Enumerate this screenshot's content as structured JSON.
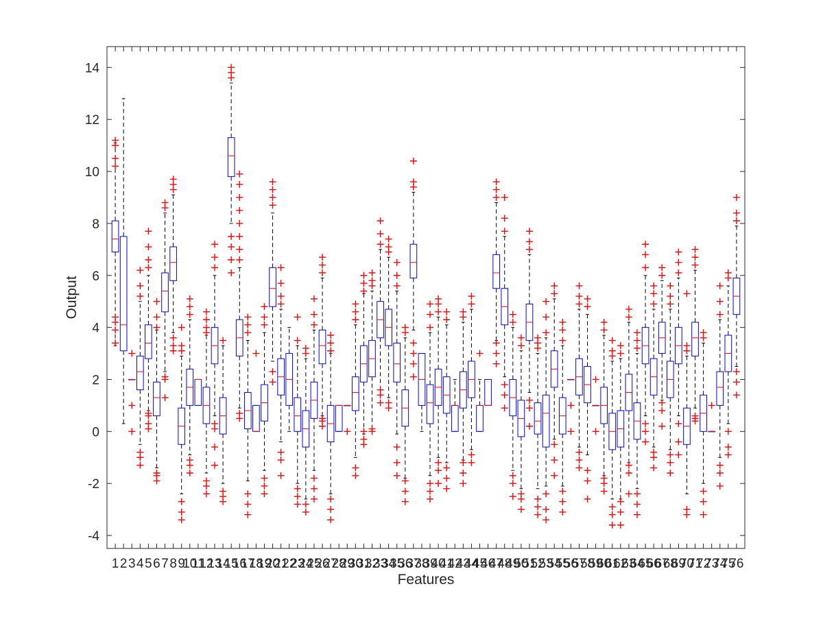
{
  "chart_data": {
    "type": "box",
    "title": "",
    "xlabel": "Features",
    "ylabel": "Output",
    "ylim": [
      -4.5,
      14.8
    ],
    "yticks": [
      -4,
      -2,
      0,
      2,
      4,
      6,
      8,
      10,
      12,
      14
    ],
    "grid": false,
    "n_features": 76,
    "categories": [
      "1",
      "2",
      "3",
      "4",
      "5",
      "6",
      "7",
      "8",
      "9",
      "10",
      "11",
      "12",
      "13",
      "14",
      "15",
      "16",
      "17",
      "18",
      "19",
      "20",
      "21",
      "22",
      "23",
      "24",
      "25",
      "26",
      "27",
      "28",
      "29",
      "30",
      "31",
      "32",
      "33",
      "34",
      "35",
      "36",
      "37",
      "38",
      "39",
      "40",
      "41",
      "42",
      "43",
      "44",
      "45",
      "46",
      "47",
      "48",
      "49",
      "50",
      "51",
      "52",
      "53",
      "54",
      "55",
      "56",
      "57",
      "58",
      "59",
      "60",
      "61",
      "62",
      "63",
      "64",
      "65",
      "66",
      "67",
      "68",
      "69",
      "70",
      "71",
      "72",
      "73",
      "74",
      "75",
      "76"
    ],
    "boxes": [
      {
        "q1": 6.9,
        "median": 7.4,
        "q3": 8.1,
        "whisker_low": 3.3,
        "whisker_high": 11.1,
        "outliers": [
          3.4,
          3.9,
          4.2,
          4.4,
          10.2,
          10.5,
          11.0,
          11.2
        ]
      },
      {
        "q1": 3.1,
        "median": 4.1,
        "q3": 7.5,
        "whisker_low": 0.3,
        "whisker_high": 12.8,
        "outliers": []
      },
      {
        "q1": 2.0,
        "median": 2.0,
        "q3": 2.0,
        "whisker_low": 2.0,
        "whisker_high": 2.0,
        "outliers": [
          0.0,
          1.0,
          3.0
        ]
      },
      {
        "q1": 1.6,
        "median": 2.3,
        "q3": 2.9,
        "whisker_low": -0.5,
        "whisker_high": 5.0,
        "outliers": [
          -1.3,
          -1.0,
          -0.8,
          5.2,
          5.6,
          6.2
        ]
      },
      {
        "q1": 2.8,
        "median": 3.4,
        "q3": 4.1,
        "whisker_low": 0.8,
        "whisker_high": 6.0,
        "outliers": [
          0.1,
          0.3,
          0.6,
          0.7,
          6.3,
          6.6,
          7.1,
          7.7
        ]
      },
      {
        "q1": 0.6,
        "median": 1.3,
        "q3": 1.9,
        "whisker_low": -1.4,
        "whisker_high": 3.9,
        "outliers": [
          -1.9,
          -1.7,
          -1.6,
          4.0,
          4.4,
          5.0
        ]
      },
      {
        "q1": 4.6,
        "median": 5.4,
        "q3": 6.1,
        "whisker_low": 2.3,
        "whisker_high": 8.4,
        "outliers": [
          1.3,
          2.0,
          2.1,
          8.6,
          8.8
        ]
      },
      {
        "q1": 5.8,
        "median": 6.5,
        "q3": 7.1,
        "whisker_low": 3.8,
        "whisker_high": 9.1,
        "outliers": [
          3.1,
          3.3,
          3.6,
          9.3,
          9.5,
          9.7
        ]
      },
      {
        "q1": -0.5,
        "median": 0.2,
        "q3": 0.9,
        "whisker_low": -2.4,
        "whisker_high": 2.9,
        "outliers": [
          -3.4,
          -3.1,
          -2.7,
          3.1,
          3.3,
          4.0
        ]
      },
      {
        "q1": 1.0,
        "median": 1.7,
        "q3": 2.4,
        "whisker_low": -0.9,
        "whisker_high": 4.3,
        "outliers": [
          -1.6,
          -1.3,
          -1.1,
          4.5,
          4.8,
          5.1
        ]
      },
      {
        "q1": 1.0,
        "median": 2.0,
        "q3": 2.0,
        "whisker_low": 1.0,
        "whisker_high": 2.0,
        "outliers": []
      },
      {
        "q1": 0.3,
        "median": 1.0,
        "q3": 1.7,
        "whisker_low": -1.6,
        "whisker_high": 3.7,
        "outliers": [
          -2.4,
          -2.1,
          -1.9,
          3.8,
          4.0,
          4.3,
          4.6
        ]
      },
      {
        "q1": 2.6,
        "median": 3.3,
        "q3": 4.0,
        "whisker_low": 0.6,
        "whisker_high": 6.0,
        "outliers": [
          -1.3,
          -0.6,
          0.1,
          0.3,
          6.3,
          6.7,
          7.2
        ]
      },
      {
        "q1": -0.1,
        "median": 0.6,
        "q3": 1.3,
        "whisker_low": -2.0,
        "whisker_high": 3.3,
        "outliers": [
          -2.7,
          -2.5,
          -2.3,
          3.5
        ]
      },
      {
        "q1": 9.8,
        "median": 10.6,
        "q3": 11.3,
        "whisker_low": 8.0,
        "whisker_high": 13.4,
        "outliers": [
          6.1,
          6.6,
          7.1,
          7.5,
          13.6,
          13.8,
          14.0
        ]
      },
      {
        "q1": 2.9,
        "median": 3.6,
        "q3": 4.3,
        "whisker_low": 0.9,
        "whisker_high": 6.3,
        "outliers": [
          0.5,
          0.7,
          6.6,
          7.0,
          7.5,
          8.0,
          8.5,
          9.0,
          9.5,
          9.9
        ]
      },
      {
        "q1": 0.1,
        "median": 0.8,
        "q3": 1.5,
        "whisker_low": -1.9,
        "whisker_high": 3.5,
        "outliers": [
          -3.2,
          -2.8,
          -2.4,
          3.8,
          4.1,
          4.4
        ]
      },
      {
        "q1": 0.0,
        "median": 0.0,
        "q3": 1.0,
        "whisker_low": 0.0,
        "whisker_high": 1.0,
        "outliers": [
          3.0
        ]
      },
      {
        "q1": 0.4,
        "median": 1.1,
        "q3": 1.8,
        "whisker_low": -1.5,
        "whisker_high": 3.8,
        "outliers": [
          -2.4,
          -2.1,
          -1.8,
          4.1,
          4.4,
          4.8
        ]
      },
      {
        "q1": 4.8,
        "median": 5.5,
        "q3": 6.3,
        "whisker_low": 2.7,
        "whisker_high": 8.4,
        "outliers": [
          1.9,
          2.3,
          8.7,
          9.0,
          9.3,
          9.6
        ]
      },
      {
        "q1": 1.4,
        "median": 2.1,
        "q3": 2.8,
        "whisker_low": -0.4,
        "whisker_high": 4.7,
        "outliers": [
          -1.7,
          -1.1,
          -0.8,
          4.9,
          5.2,
          5.7,
          6.3
        ]
      },
      {
        "q1": 1.0,
        "median": 2.0,
        "q3": 3.0,
        "whisker_low": 0.0,
        "whisker_high": 4.0,
        "outliers": []
      },
      {
        "q1": 0.0,
        "median": 0.6,
        "q3": 1.3,
        "whisker_low": -2.0,
        "whisker_high": 3.3,
        "outliers": [
          -2.8,
          -2.5,
          -2.2,
          3.5,
          4.4
        ]
      },
      {
        "q1": -0.6,
        "median": 0.1,
        "q3": 0.8,
        "whisker_low": -2.6,
        "whisker_high": 2.8,
        "outliers": [
          -3.1,
          -2.8,
          3.0,
          3.2
        ]
      },
      {
        "q1": 0.5,
        "median": 1.2,
        "q3": 1.9,
        "whisker_low": -1.5,
        "whisker_high": 3.9,
        "outliers": [
          -2.6,
          -2.2,
          -1.8,
          4.1,
          4.5,
          5.1
        ]
      },
      {
        "q1": 2.6,
        "median": 3.3,
        "q3": 3.9,
        "whisker_low": 0.6,
        "whisker_high": 5.9,
        "outliers": [
          0.2,
          0.4,
          0.5,
          6.1,
          6.4,
          6.7
        ]
      },
      {
        "q1": -0.4,
        "median": 0.3,
        "q3": 1.0,
        "whisker_low": -2.4,
        "whisker_high": 3.0,
        "outliers": [
          -3.4,
          -3.0,
          -2.6,
          3.1,
          3.4,
          3.7
        ]
      },
      {
        "q1": 0.0,
        "median": 1.0,
        "q3": 1.0,
        "whisker_low": 0.0,
        "whisker_high": 1.0,
        "outliers": []
      },
      {
        "q1": 1.0,
        "median": 1.0,
        "q3": 1.0,
        "whisker_low": 1.0,
        "whisker_high": 1.0,
        "outliers": [
          0.0
        ]
      },
      {
        "q1": 0.8,
        "median": 1.5,
        "q3": 2.1,
        "whisker_low": -1.0,
        "whisker_high": 4.1,
        "outliers": [
          -1.7,
          -1.4,
          4.3,
          4.6,
          4.9
        ]
      },
      {
        "q1": 1.9,
        "median": 2.6,
        "q3": 3.3,
        "whisker_low": -0.1,
        "whisker_high": 5.3,
        "outliers": [
          -0.5,
          -0.3,
          0.0,
          5.4,
          5.7,
          6.0
        ]
      },
      {
        "q1": 2.1,
        "median": 2.8,
        "q3": 3.5,
        "whisker_low": 0.1,
        "whisker_high": 5.4,
        "outliers": [
          0.0,
          0.1,
          5.6,
          5.8,
          6.1
        ]
      },
      {
        "q1": 3.6,
        "median": 4.3,
        "q3": 5.0,
        "whisker_low": 1.6,
        "whisker_high": 7.0,
        "outliers": [
          1.1,
          1.4,
          1.6,
          7.2,
          7.6,
          8.1
        ]
      },
      {
        "q1": 3.3,
        "median": 4.0,
        "q3": 4.7,
        "whisker_low": 1.3,
        "whisker_high": 6.7,
        "outliers": [
          0.9,
          1.1,
          6.9,
          7.1,
          7.4
        ]
      },
      {
        "q1": 1.9,
        "median": 2.6,
        "q3": 3.4,
        "whisker_low": -0.1,
        "whisker_high": 5.4,
        "outliers": [
          -1.7,
          -1.2,
          -0.6,
          5.6,
          6.0,
          6.5
        ]
      },
      {
        "q1": 0.2,
        "median": 0.9,
        "q3": 1.6,
        "whisker_low": -1.8,
        "whisker_high": 3.6,
        "outliers": [
          -2.7,
          -2.3,
          -1.9,
          3.8,
          4.0
        ]
      },
      {
        "q1": 5.9,
        "median": 6.5,
        "q3": 7.2,
        "whisker_low": 3.9,
        "whisker_high": 9.2,
        "outliers": [
          2.1,
          2.6,
          3.0,
          3.4,
          9.4,
          9.6,
          10.4
        ]
      },
      {
        "q1": 1.0,
        "median": 2.0,
        "q3": 3.0,
        "whisker_low": 0.0,
        "whisker_high": 3.0,
        "outliers": []
      },
      {
        "q1": 0.3,
        "median": 1.1,
        "q3": 1.8,
        "whisker_low": -1.7,
        "whisker_high": 3.8,
        "outliers": [
          -2.6,
          -2.3,
          -2.0,
          4.0,
          4.5,
          4.9
        ]
      },
      {
        "q1": 1.0,
        "median": 1.7,
        "q3": 2.4,
        "whisker_low": -1.0,
        "whisker_high": 4.4,
        "outliers": [
          -2.0,
          -1.5,
          -1.2,
          4.6,
          4.9,
          5.1
        ]
      },
      {
        "q1": 0.7,
        "median": 1.4,
        "q3": 2.1,
        "whisker_low": -1.2,
        "whisker_high": 4.1,
        "outliers": [
          -2.2,
          -1.8,
          -1.4,
          4.3,
          4.6
        ]
      },
      {
        "q1": 0.0,
        "median": 1.0,
        "q3": 1.0,
        "whisker_low": 0.0,
        "whisker_high": 2.0,
        "outliers": []
      },
      {
        "q1": 0.9,
        "median": 1.6,
        "q3": 2.3,
        "whisker_low": -1.1,
        "whisker_high": 4.2,
        "outliers": [
          -2.0,
          -1.6,
          -1.2,
          4.4,
          4.6
        ]
      },
      {
        "q1": 1.3,
        "median": 2.0,
        "q3": 2.7,
        "whisker_low": -0.7,
        "whisker_high": 4.7,
        "outliers": [
          -1.2,
          -0.9,
          4.9,
          5.2
        ]
      },
      {
        "q1": 0.0,
        "median": 1.0,
        "q3": 1.0,
        "whisker_low": 0.0,
        "whisker_high": 2.0,
        "outliers": [
          3.0
        ]
      },
      {
        "q1": 1.0,
        "median": 1.0,
        "q3": 2.0,
        "whisker_low": 1.0,
        "whisker_high": 2.0,
        "outliers": []
      },
      {
        "q1": 5.5,
        "median": 6.1,
        "q3": 6.8,
        "whisker_low": 3.5,
        "whisker_high": 8.8,
        "outliers": [
          2.6,
          3.0,
          3.4,
          9.0,
          9.3,
          9.6
        ]
      },
      {
        "q1": 4.1,
        "median": 4.8,
        "q3": 5.5,
        "whisker_low": 2.1,
        "whisker_high": 7.5,
        "outliers": [
          0.9,
          1.4,
          1.8,
          7.7,
          8.2,
          9.0
        ]
      },
      {
        "q1": 0.6,
        "median": 1.3,
        "q3": 2.0,
        "whisker_low": -1.5,
        "whisker_high": 4.0,
        "outliers": [
          -2.5,
          -2.0,
          -1.7,
          4.2,
          4.5
        ]
      },
      {
        "q1": -0.2,
        "median": 0.5,
        "q3": 1.2,
        "whisker_low": -2.2,
        "whisker_high": 3.1,
        "outliers": [
          -3.0,
          -2.6,
          -2.4,
          3.3,
          3.6
        ]
      },
      {
        "q1": 3.5,
        "median": 4.2,
        "q3": 4.9,
        "whisker_low": 1.5,
        "whisker_high": 6.8,
        "outliers": [
          0.2,
          0.9,
          1.2,
          7.0,
          7.3,
          7.7
        ]
      },
      {
        "q1": -0.1,
        "median": 0.4,
        "q3": 1.1,
        "whisker_low": -2.2,
        "whisker_high": 3.0,
        "outliers": [
          -3.2,
          -2.9,
          -2.6,
          3.2,
          3.4,
          3.6
        ]
      },
      {
        "q1": -0.6,
        "median": 0.7,
        "q3": 1.4,
        "whisker_low": -2.1,
        "whisker_high": 3.6,
        "outliers": [
          -3.4,
          -3.0,
          -2.4,
          3.8,
          4.4,
          5.0
        ]
      },
      {
        "q1": 1.7,
        "median": 2.4,
        "q3": 3.1,
        "whisker_low": -0.3,
        "whisker_high": 5.1,
        "outliers": [
          -1.7,
          -1.1,
          -0.5,
          5.3,
          5.6
        ]
      },
      {
        "q1": -0.1,
        "median": 0.6,
        "q3": 1.3,
        "whisker_low": -2.1,
        "whisker_high": 3.3,
        "outliers": [
          -3.1,
          -2.7,
          -2.3,
          3.5,
          3.9,
          4.2
        ]
      },
      {
        "q1": 2.0,
        "median": 2.0,
        "q3": 2.0,
        "whisker_low": 2.0,
        "whisker_high": 2.0,
        "outliers": [
          0.0,
          1.0
        ]
      },
      {
        "q1": 1.4,
        "median": 2.1,
        "q3": 2.8,
        "whisker_low": -0.6,
        "whisker_high": 4.7,
        "outliers": [
          -1.4,
          -1.1,
          -0.8,
          4.9,
          5.2,
          5.6
        ]
      },
      {
        "q1": 1.1,
        "median": 1.8,
        "q3": 2.5,
        "whisker_low": -0.9,
        "whisker_high": 4.5,
        "outliers": [
          -2.6,
          -1.9,
          -1.5,
          4.8,
          5.1
        ]
      },
      {
        "q1": 1.0,
        "median": 1.0,
        "q3": 1.0,
        "whisker_low": 1.0,
        "whisker_high": 1.0,
        "outliers": [
          0.0,
          2.0
        ]
      },
      {
        "q1": 0.3,
        "median": 1.0,
        "q3": 1.7,
        "whisker_low": -1.7,
        "whisker_high": 3.7,
        "outliers": [
          -2.3,
          -2.0,
          -1.8,
          3.9,
          4.2
        ]
      },
      {
        "q1": -0.7,
        "median": 0.0,
        "q3": 0.7,
        "whisker_low": -2.6,
        "whisker_high": 2.7,
        "outliers": [
          -3.6,
          -3.2,
          -2.9,
          2.9,
          3.1,
          3.5
        ]
      },
      {
        "q1": -0.6,
        "median": 0.1,
        "q3": 0.8,
        "whisker_low": -2.6,
        "whisker_high": 2.8,
        "outliers": [
          -3.6,
          -3.1,
          -2.7,
          3.0,
          3.3
        ]
      },
      {
        "q1": 0.8,
        "median": 1.5,
        "q3": 2.2,
        "whisker_low": -1.2,
        "whisker_high": 4.2,
        "outliers": [
          -2.4,
          -1.6,
          -1.3,
          4.4,
          4.7
        ]
      },
      {
        "q1": -0.3,
        "median": 0.4,
        "q3": 1.1,
        "whisker_low": -2.2,
        "whisker_high": 3.0,
        "outliers": [
          -3.2,
          -2.8,
          -2.4,
          3.2,
          3.5,
          3.8
        ]
      },
      {
        "q1": 2.6,
        "median": 3.3,
        "q3": 4.0,
        "whisker_low": 0.6,
        "whisker_high": 6.0,
        "outliers": [
          -0.4,
          0.0,
          0.3,
          6.3,
          6.8,
          7.2
        ]
      },
      {
        "q1": 1.4,
        "median": 2.1,
        "q3": 2.8,
        "whisker_low": -0.6,
        "whisker_high": 4.7,
        "outliers": [
          -1.4,
          -1.0,
          -0.8,
          4.9,
          5.3,
          5.6
        ]
      },
      {
        "q1": 3.0,
        "median": 3.6,
        "q3": 4.2,
        "whisker_low": 1.2,
        "whisker_high": 5.8,
        "outliers": [
          0.2,
          0.8,
          1.1,
          6.0,
          6.3
        ]
      },
      {
        "q1": 1.3,
        "median": 2.0,
        "q3": 2.7,
        "whisker_low": -0.7,
        "whisker_high": 4.7,
        "outliers": [
          -1.6,
          -1.2,
          -0.9,
          4.9,
          5.2,
          5.6
        ]
      },
      {
        "q1": 2.6,
        "median": 3.3,
        "q3": 4.0,
        "whisker_low": 0.6,
        "whisker_high": 5.9,
        "outliers": [
          -0.9,
          -0.4,
          0.3,
          6.1,
          6.5,
          6.9
        ]
      },
      {
        "q1": -0.5,
        "median": 0.2,
        "q3": 0.9,
        "whisker_low": -2.4,
        "whisker_high": 2.9,
        "outliers": [
          -3.2,
          -3.0,
          3.1,
          3.3,
          5.3
        ]
      },
      {
        "q1": 2.9,
        "median": 3.6,
        "q3": 4.2,
        "whisker_low": 0.9,
        "whisker_high": 6.2,
        "outliers": [
          0.4,
          0.5,
          0.6,
          6.4,
          6.7,
          7.0
        ]
      },
      {
        "q1": 0.0,
        "median": 0.7,
        "q3": 1.4,
        "whisker_low": -2.0,
        "whisker_high": 3.4,
        "outliers": [
          -3.2,
          -2.7,
          -2.3,
          3.6,
          3.8
        ]
      },
      {
        "q1": 0.0,
        "median": 0.0,
        "q3": 0.0,
        "whisker_low": 0.0,
        "whisker_high": 0.0,
        "outliers": [
          1.0
        ]
      },
      {
        "q1": 1.0,
        "median": 1.7,
        "q3": 2.3,
        "whisker_low": -1.0,
        "whisker_high": 4.3,
        "outliers": [
          -2.1,
          -1.6,
          -1.3,
          4.5,
          5.0,
          5.6
        ]
      },
      {
        "q1": 2.3,
        "median": 3.0,
        "q3": 3.7,
        "whisker_low": 0.3,
        "whisker_high": 5.6,
        "outliers": [
          -0.9,
          -0.6,
          0.0,
          5.9,
          6.1
        ]
      },
      {
        "q1": 4.5,
        "median": 5.2,
        "q3": 5.9,
        "whisker_low": 2.5,
        "whisker_high": 7.9,
        "outliers": [
          1.4,
          1.9,
          2.3,
          8.1,
          8.4,
          9.0
        ]
      }
    ]
  }
}
